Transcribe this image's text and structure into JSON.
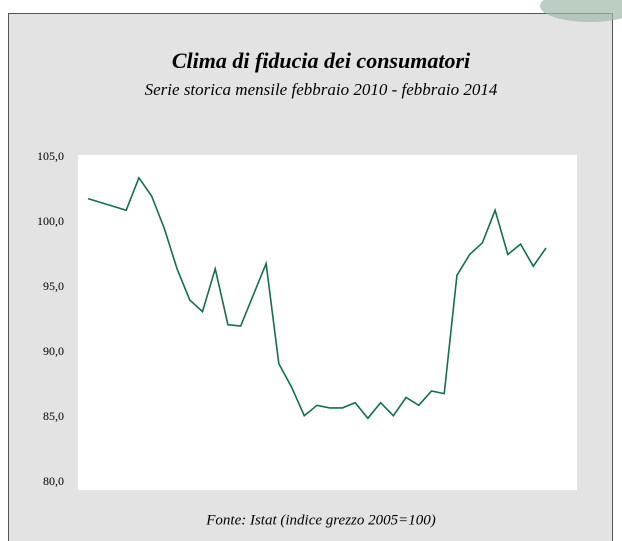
{
  "chart_data": {
    "type": "line",
    "title": "Clima di fiducia dei consumatori",
    "subtitle": "Serie storica mensile febbraio 2010 - febbraio 2014",
    "source": "Fonte: Istat (indice grezzo 2005=100)",
    "categories": [
      null,
      null,
      null,
      null,
      null,
      null,
      null,
      null,
      null,
      null,
      null,
      null,
      null,
      null,
      null,
      null,
      null,
      null,
      null,
      null,
      null,
      null,
      null,
      null,
      null,
      null,
      null,
      null,
      null,
      null,
      null,
      null,
      null,
      null,
      null,
      null,
      null
    ],
    "series": [
      {
        "name": "Clima di fiducia dei consumatori",
        "color": "#137048",
        "values": [
          101.8,
          101.5,
          101.2,
          100.9,
          103.4,
          102.0,
          99.5,
          96.4,
          94.0,
          93.1,
          96.4,
          92.1,
          92.0,
          94.4,
          96.8,
          89.1,
          87.3,
          85.1,
          85.9,
          85.7,
          85.7,
          86.1,
          84.9,
          86.1,
          85.1,
          86.5,
          85.9,
          87.0,
          86.8,
          95.9,
          97.5,
          98.4,
          100.9,
          97.5,
          98.3,
          96.6,
          98.0
        ]
      }
    ],
    "ylim": [
      80,
      105
    ],
    "yticks": [
      {
        "value": 80,
        "label": "80,0"
      },
      {
        "value": 85,
        "label": "85,0"
      },
      {
        "value": 90,
        "label": "90,0"
      },
      {
        "value": 95,
        "label": "95,0"
      },
      {
        "value": 100,
        "label": "100,0"
      },
      {
        "value": 105,
        "label": "105,0"
      }
    ],
    "grid": false
  }
}
